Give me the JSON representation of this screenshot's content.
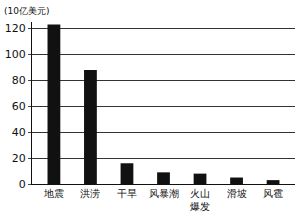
{
  "chart_data": {
    "type": "bar",
    "y_label": "(10亿美元)",
    "categories": [
      "地震",
      "洪涝",
      "干旱",
      "风暴潮",
      "火山爆发",
      "滑坡",
      "风雹"
    ],
    "values": [
      123,
      88,
      16,
      9,
      8,
      5,
      3
    ],
    "color": "#111111",
    "ylim": [
      0,
      125
    ],
    "yticks": [
      0,
      20,
      40,
      60,
      80,
      100,
      120
    ],
    "grid": true
  }
}
